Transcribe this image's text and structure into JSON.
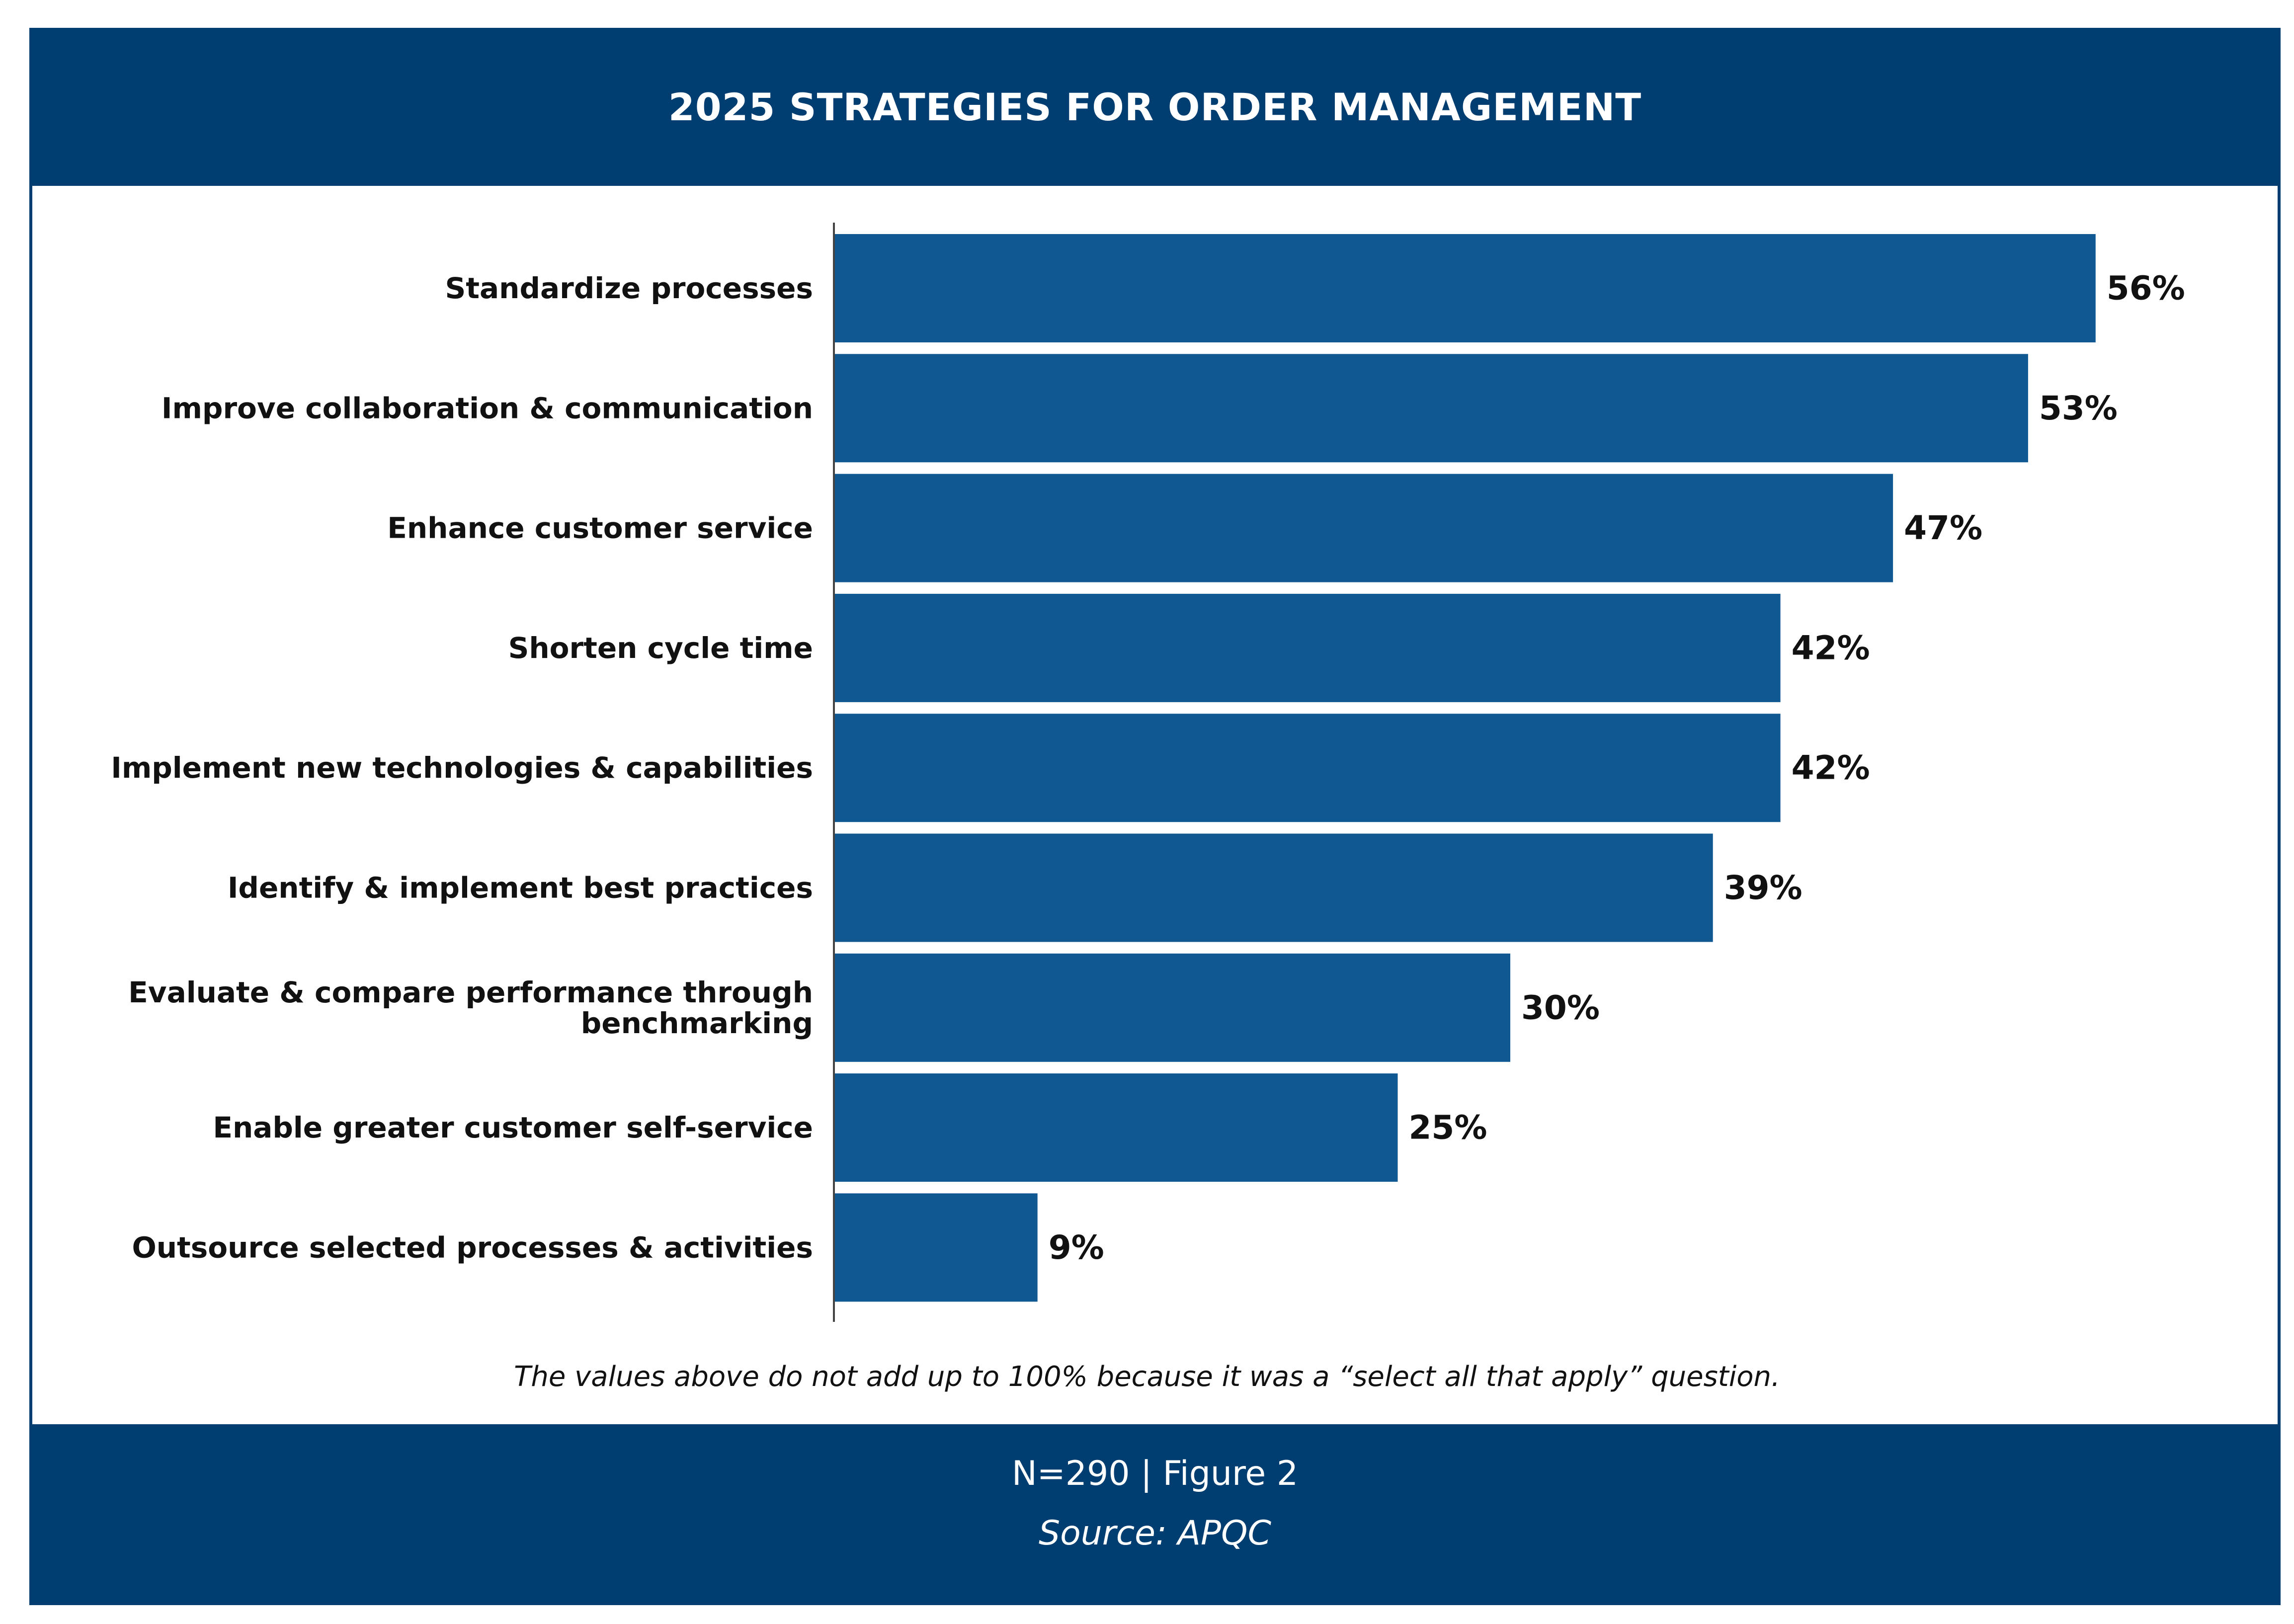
{
  "header": {
    "title": "2025 STRATEGIES FOR ORDER MANAGEMENT"
  },
  "chart_data": {
    "type": "bar",
    "orientation": "horizontal",
    "categories": [
      [
        "Standardize processes"
      ],
      [
        "Improve collaboration & communication"
      ],
      [
        "Enhance customer service"
      ],
      [
        "Shorten cycle time"
      ],
      [
        "Implement new technologies & capabilities"
      ],
      [
        "Identify & implement best practices"
      ],
      [
        "Evaluate & compare performance through",
        "benchmarking"
      ],
      [
        "Enable greater customer self-service"
      ],
      [
        "Outsource selected processes & activities"
      ]
    ],
    "values": [
      56,
      53,
      47,
      42,
      42,
      39,
      30,
      25,
      9
    ],
    "value_labels": [
      "56%",
      "53%",
      "47%",
      "42%",
      "42%",
      "39%",
      "30%",
      "25%",
      "9%"
    ],
    "xlim": [
      0,
      100
    ],
    "bar_color": "#105892",
    "grid": false
  },
  "note": "The values above do not add up to 100% because it was a “select all that apply” question.",
  "footer": {
    "figure": "N=290 | Figure 2",
    "source": "Source: APQC"
  },
  "colors": {
    "header_bg": "#003d70",
    "bar": "#105892",
    "text": "#111111"
  }
}
